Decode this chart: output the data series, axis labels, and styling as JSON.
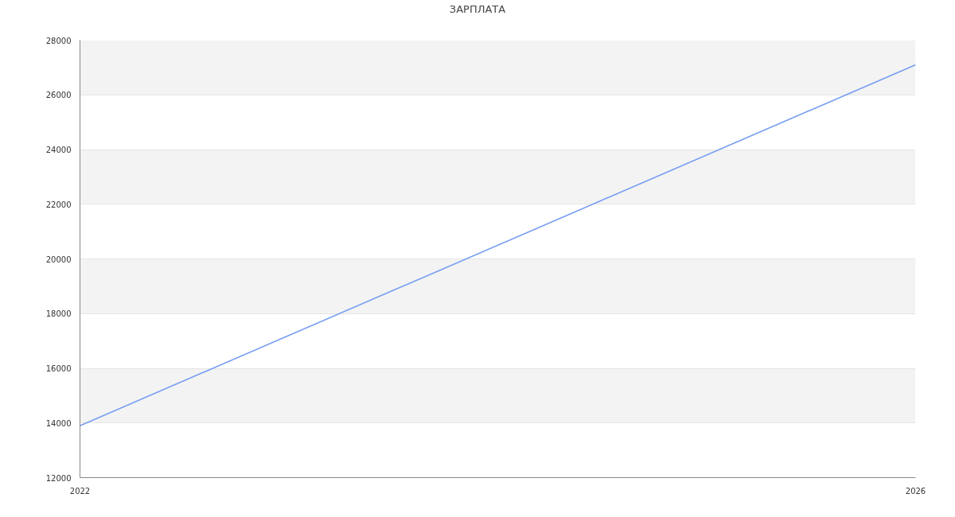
{
  "chart_data": {
    "type": "line",
    "title": "ЗАРПЛАТА",
    "x": [
      "2022",
      "2026"
    ],
    "series": [
      {
        "color": "#779ef2",
        "values": [
          13900,
          27100
        ]
      }
    ],
    "xlim": [
      "2022",
      "2026"
    ],
    "xticks": [
      "2022",
      "2026"
    ],
    "ylim": [
      12000,
      28000
    ],
    "yticks": [
      12000,
      14000,
      16000,
      18000,
      20000,
      22000,
      24000,
      26000,
      28000
    ],
    "grid": true,
    "line_style": "solid"
  }
}
